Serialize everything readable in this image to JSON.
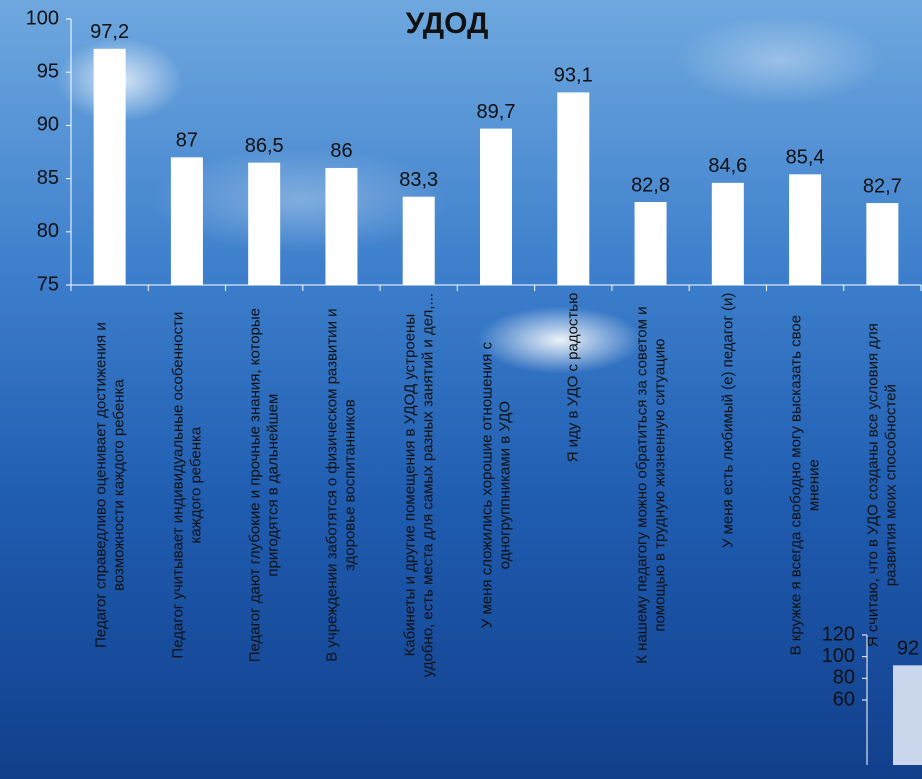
{
  "chart_data": [
    {
      "type": "bar",
      "title": "УДОД",
      "categories": [
        "Педагог справедливо оценивает достижения и возможности каждого ребенка",
        "Педагог учитывает индивидуальные особенности каждого  ребенка",
        "Педагог дают глубокие и прочные знания, которые пригодятся в дальнейшем",
        "В учреждении заботятся о физическом развитии и здоровье воспитанников",
        "Кабинеты и другие помещения в УДОД устроены удобно, есть места для самых разных занятий и дел,...",
        "У меня сложились хорошие отношения с одногруппниками в УДО",
        "Я иду в УДО с радостью",
        "К нашему педагогу можно обратиться за советом и помощью в трудную жизненную ситуацию",
        "У меня есть любимый (е) педагог (и)",
        "В кружке я всегда свободно могу высказать свое мнение",
        "Я считаю, что в УДО созданы все условия для развития моих способностей"
      ],
      "values": [
        97.2,
        87,
        86.5,
        86,
        83.3,
        89.7,
        93.1,
        82.8,
        84.6,
        85.4,
        82.7
      ],
      "value_labels": [
        "97,2",
        "87",
        "86,5",
        "86",
        "83,3",
        "89,7",
        "93,1",
        "82,8",
        "84,6",
        "85,4",
        "82,7"
      ],
      "color": "#ffffff",
      "ylim": [
        75,
        100
      ],
      "yticks": [
        75,
        80,
        85,
        90,
        95,
        100
      ]
    },
    {
      "type": "bar",
      "categories": [
        null
      ],
      "values": [
        92
      ],
      "color": "#c9d6ec",
      "ylim": [
        0,
        120
      ],
      "yticks": [
        60,
        80,
        100,
        120
      ]
    }
  ]
}
